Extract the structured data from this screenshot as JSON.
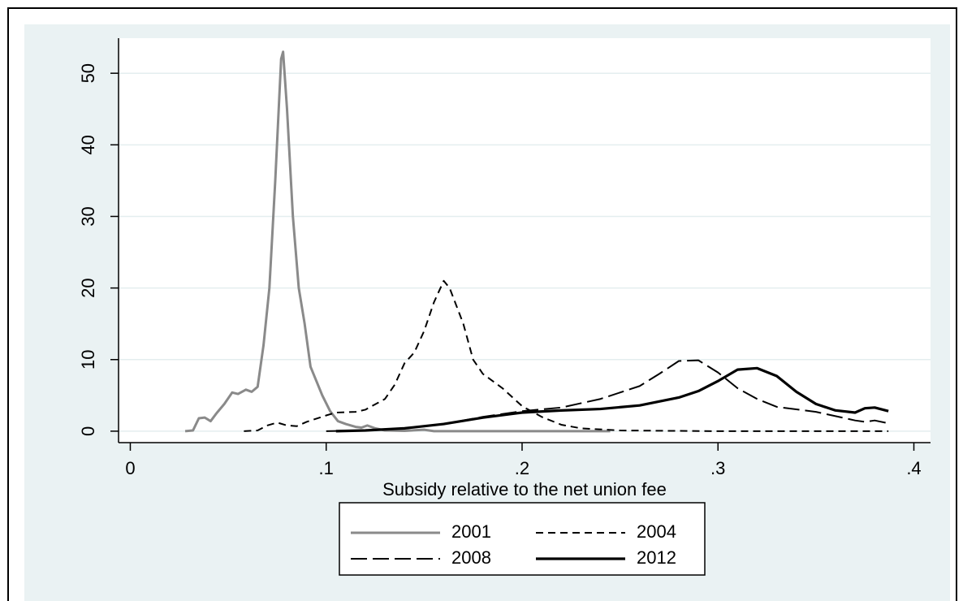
{
  "chart_data": {
    "type": "line",
    "x_label": "Subsidy relative to the net union fee",
    "xlim": [
      -0.006,
      0.4085
    ],
    "ylim": [
      -1.6,
      54.9
    ],
    "xticks": [
      0,
      {
        "value": 0.1,
        "label": ".1"
      },
      {
        "value": 0.2,
        "label": ".2"
      },
      {
        "value": 0.3,
        "label": ".3"
      },
      {
        "value": 0.4,
        "label": ".4"
      }
    ],
    "yticks": [
      0,
      10,
      20,
      30,
      40,
      50
    ],
    "grid": true,
    "legend": "bottom",
    "series": [
      {
        "name": "2001",
        "color": "#8a8a8a",
        "dash": "solid",
        "weight": "medium",
        "x": [
          0.028,
          0.032,
          0.035,
          0.038,
          0.041,
          0.044,
          0.048,
          0.052,
          0.055,
          0.059,
          0.062,
          0.065,
          0.068,
          0.071,
          0.074,
          0.077,
          0.078,
          0.08,
          0.083,
          0.086,
          0.089,
          0.092,
          0.095,
          0.098,
          0.102,
          0.106,
          0.11,
          0.115,
          0.118,
          0.121,
          0.125,
          0.13,
          0.14,
          0.15,
          0.155,
          0.2,
          0.245
        ],
        "values": [
          0,
          0.1,
          1.8,
          1.9,
          1.4,
          2.5,
          3.8,
          5.4,
          5.2,
          5.8,
          5.5,
          6.2,
          12,
          20,
          35,
          52,
          53,
          45,
          30,
          20,
          15,
          9,
          7,
          5,
          2.8,
          1.4,
          1.0,
          0.6,
          0.5,
          0.8,
          0.4,
          0.1,
          0.05,
          0.2,
          0,
          0,
          0
        ]
      },
      {
        "name": "2004",
        "color": "#000000",
        "dash": "short",
        "weight": "thin",
        "x": [
          0.058,
          0.065,
          0.07,
          0.075,
          0.08,
          0.085,
          0.09,
          0.1,
          0.105,
          0.115,
          0.12,
          0.13,
          0.135,
          0.14,
          0.145,
          0.15,
          0.155,
          0.16,
          0.163,
          0.17,
          0.175,
          0.18,
          0.19,
          0.2,
          0.21,
          0.22,
          0.23,
          0.25,
          0.3,
          0.387
        ],
        "values": [
          0,
          0.1,
          0.8,
          1.2,
          0.8,
          0.7,
          1.3,
          2.2,
          2.6,
          2.7,
          3,
          4.5,
          6.5,
          9.5,
          11,
          14,
          18,
          21,
          20,
          15,
          10,
          8,
          6,
          3.5,
          2,
          0.9,
          0.4,
          0.1,
          0,
          0
        ]
      },
      {
        "name": "2008",
        "color": "#000000",
        "dash": "long",
        "weight": "thin",
        "x": [
          0.1,
          0.12,
          0.14,
          0.16,
          0.18,
          0.2,
          0.22,
          0.24,
          0.26,
          0.27,
          0.28,
          0.29,
          0.3,
          0.31,
          0.32,
          0.33,
          0.35,
          0.37,
          0.375,
          0.38,
          0.387
        ],
        "values": [
          0,
          0.1,
          0.4,
          1,
          2,
          2.8,
          3.3,
          4.5,
          6.3,
          8,
          9.8,
          9.9,
          8.2,
          6,
          4.5,
          3.4,
          2.7,
          1.5,
          1.3,
          1.5,
          1.1
        ]
      },
      {
        "name": "2012",
        "color": "#000000",
        "dash": "solid",
        "weight": "thick",
        "x": [
          0.105,
          0.12,
          0.14,
          0.16,
          0.18,
          0.2,
          0.22,
          0.24,
          0.26,
          0.28,
          0.29,
          0.3,
          0.31,
          0.32,
          0.33,
          0.34,
          0.35,
          0.36,
          0.37,
          0.375,
          0.38,
          0.387
        ],
        "values": [
          0,
          0.1,
          0.4,
          1,
          1.9,
          2.6,
          2.9,
          3.1,
          3.6,
          4.7,
          5.6,
          7,
          8.6,
          8.8,
          7.7,
          5.5,
          3.8,
          2.9,
          2.6,
          3.2,
          3.3,
          2.8
        ]
      }
    ]
  }
}
